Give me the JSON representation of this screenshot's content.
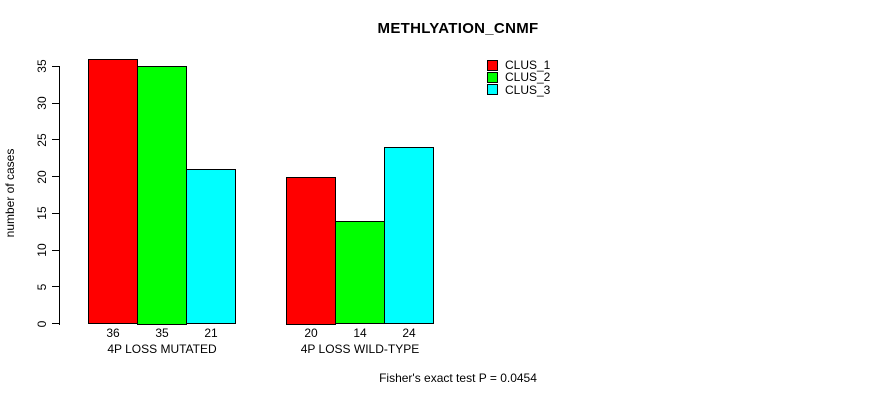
{
  "chart_data": {
    "type": "bar",
    "title": "METHLYATION_CNMF",
    "xlabel": "",
    "ylabel": "number of cases",
    "categories": [
      "4P LOSS MUTATED",
      "4P LOSS WILD-TYPE"
    ],
    "series": [
      {
        "name": "CLUS_1",
        "color": "#FF0000",
        "values": [
          36,
          20
        ]
      },
      {
        "name": "CLUS_2",
        "color": "#00FF00",
        "values": [
          35,
          14
        ]
      },
      {
        "name": "CLUS_3",
        "color": "#00FFFF",
        "values": [
          21,
          24
        ]
      }
    ],
    "bar_value_labels": [
      [
        36,
        35,
        21
      ],
      [
        20,
        14,
        24
      ]
    ],
    "yticks": [
      0,
      5,
      10,
      15,
      20,
      25,
      30,
      35
    ],
    "ylim": [
      0,
      36
    ],
    "grid": false,
    "legend_position": "top-right",
    "annotation": "Fisher's exact test P = 0.0454",
    "axis_color": "#000000",
    "background_color": "#FFFFFF"
  }
}
